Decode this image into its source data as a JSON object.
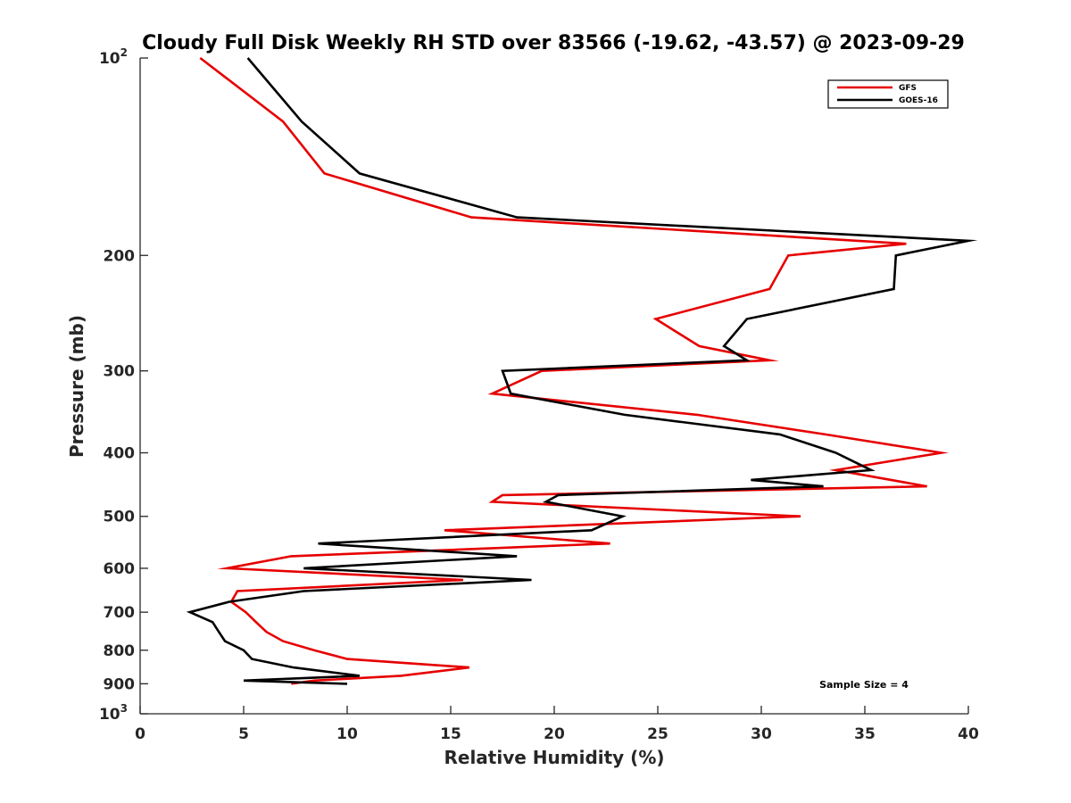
{
  "chart_data": {
    "type": "line",
    "title": "Cloudy Full Disk Weekly RH STD over 83566 (-19.62, -43.57) @ 2023-09-29",
    "xlabel": "Relative Humidity (%)",
    "ylabel": "Pressure (mb)",
    "xlim": [
      0,
      40
    ],
    "ylim": [
      100,
      1000
    ],
    "y_scale": "log",
    "y_reversed": true,
    "grid": false,
    "legend_position": "top-right",
    "x_ticks": [
      "0",
      "5",
      "10",
      "15",
      "20",
      "25",
      "30",
      "35",
      "40"
    ],
    "y_ticks": [
      {
        "value": 100,
        "base": "10",
        "exp": "2"
      },
      {
        "value": 200,
        "label": "200"
      },
      {
        "value": 300,
        "label": "300"
      },
      {
        "value": 400,
        "label": "400"
      },
      {
        "value": 500,
        "label": "500"
      },
      {
        "value": 600,
        "label": "600"
      },
      {
        "value": 700,
        "label": "700"
      },
      {
        "value": 800,
        "label": "800"
      },
      {
        "value": 900,
        "label": "900"
      },
      {
        "value": 1000,
        "base": "10",
        "exp": "3"
      }
    ],
    "series": [
      {
        "name": "GFS",
        "color": "#e60000",
        "points": [
          [
            2.9,
            100
          ],
          [
            6.9,
            125
          ],
          [
            8.9,
            150
          ],
          [
            16.0,
            175
          ],
          [
            37.0,
            192
          ],
          [
            31.3,
            200
          ],
          [
            30.4,
            225
          ],
          [
            24.9,
            250
          ],
          [
            27.0,
            275
          ],
          [
            30.4,
            289
          ],
          [
            19.4,
            300
          ],
          [
            17.0,
            325
          ],
          [
            26.9,
            350
          ],
          [
            33.1,
            375
          ],
          [
            38.7,
            400
          ],
          [
            33.6,
            425
          ],
          [
            38.0,
            450
          ],
          [
            17.5,
            464
          ],
          [
            17.0,
            475
          ],
          [
            31.9,
            500
          ],
          [
            14.7,
            525
          ],
          [
            22.7,
            550
          ],
          [
            7.3,
            575
          ],
          [
            4.2,
            600
          ],
          [
            15.6,
            625
          ],
          [
            4.7,
            650
          ],
          [
            4.4,
            675
          ],
          [
            5.1,
            700
          ],
          [
            5.6,
            725
          ],
          [
            6.1,
            750
          ],
          [
            6.9,
            775
          ],
          [
            8.4,
            800
          ],
          [
            10.0,
            825
          ],
          [
            15.9,
            850
          ],
          [
            12.6,
            875
          ],
          [
            8.4,
            890
          ],
          [
            7.3,
            900
          ]
        ]
      },
      {
        "name": "GOES-16",
        "color": "#000000",
        "points": [
          [
            5.2,
            100
          ],
          [
            7.8,
            125
          ],
          [
            10.6,
            150
          ],
          [
            18.2,
            175
          ],
          [
            40.0,
            190
          ],
          [
            36.5,
            200
          ],
          [
            36.4,
            225
          ],
          [
            29.3,
            250
          ],
          [
            28.2,
            275
          ],
          [
            29.3,
            289
          ],
          [
            17.5,
            300
          ],
          [
            17.9,
            325
          ],
          [
            23.4,
            350
          ],
          [
            30.9,
            375
          ],
          [
            33.6,
            400
          ],
          [
            35.3,
            425
          ],
          [
            29.5,
            440
          ],
          [
            33.0,
            450
          ],
          [
            20.2,
            464
          ],
          [
            19.6,
            475
          ],
          [
            23.3,
            500
          ],
          [
            21.8,
            525
          ],
          [
            8.6,
            550
          ],
          [
            18.2,
            575
          ],
          [
            7.9,
            600
          ],
          [
            18.9,
            625
          ],
          [
            7.9,
            650
          ],
          [
            4.3,
            675
          ],
          [
            2.4,
            700
          ],
          [
            3.5,
            725
          ],
          [
            3.8,
            750
          ],
          [
            4.1,
            775
          ],
          [
            5.0,
            800
          ],
          [
            5.4,
            825
          ],
          [
            7.4,
            850
          ],
          [
            10.6,
            875
          ],
          [
            5.0,
            890
          ],
          [
            10.0,
            900
          ]
        ]
      }
    ],
    "annotation": "Sample Size = 4"
  }
}
